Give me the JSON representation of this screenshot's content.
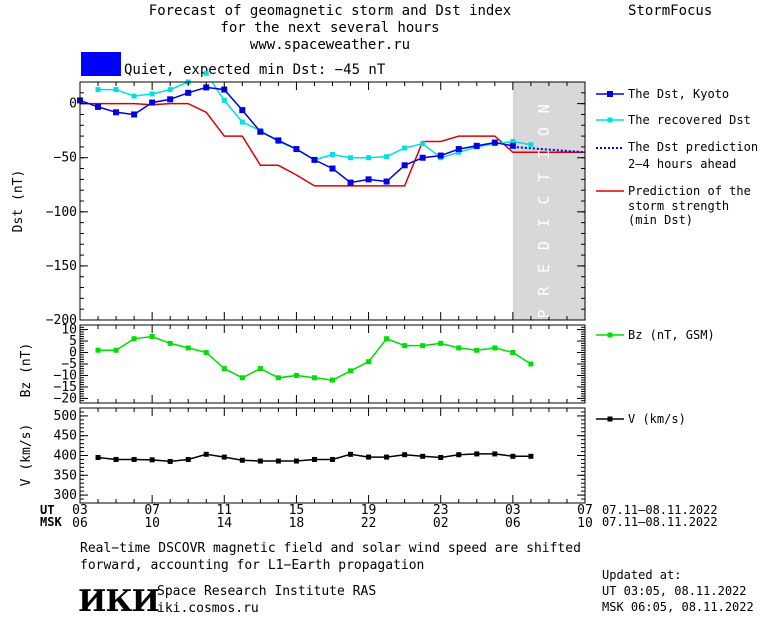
{
  "header": {
    "title_line1": "Forecast of geomagnetic storm and Dst index",
    "title_line2": "for the next several hours",
    "site": "www.spaceweather.ru",
    "brand": "StormFocus"
  },
  "status": {
    "text": "Quiet, expected min Dst: −45 nT",
    "color": "#0000ff"
  },
  "prediction_label": "PREDICTION",
  "legend": {
    "dst_kyoto": "The Dst, Kyoto",
    "dst_recovered": "The recovered Dst",
    "dst_prediction_l1": "The Dst prediction",
    "dst_prediction_l2": "2–4 hours ahead",
    "storm_l1": "Prediction of the",
    "storm_l2": "storm strength",
    "storm_l3": "(min Dst)",
    "bz": "Bz (nT, GSM)",
    "v": "V (km/s)"
  },
  "time_axis": {
    "ut_label": "UT",
    "msk_label": "MSK",
    "ut_ticks": [
      "03",
      "07",
      "11",
      "15",
      "19",
      "23",
      "03",
      "07"
    ],
    "msk_ticks": [
      "06",
      "10",
      "14",
      "18",
      "22",
      "02",
      "06",
      "10"
    ],
    "ut_range": "07.11–08.11.2022",
    "msk_range": "07.11–08.11.2022"
  },
  "footer": {
    "note_l1": "Real−time DSCOVR magnetic field and solar wind speed are shifted",
    "note_l2": "forward, accounting for L1−Earth propagation",
    "logo": "ИКИ",
    "institute": "Space Research Institute RAS",
    "url": "iki.cosmos.ru",
    "updated_label": "Updated at:",
    "updated_ut": "UT   03:05, 08.11.2022",
    "updated_msk": "MSK 06:05, 08.11.2022"
  },
  "colors": {
    "dst_kyoto": "#0000e0",
    "dst_recovered": "#00e0e0",
    "dst_prediction": "#0000ff",
    "storm": "#dd0000",
    "bz": "#00dd00",
    "v": "#000000",
    "prediction_band": "#d8d8d8"
  },
  "chart_data": [
    {
      "type": "line",
      "ylabel": "Dst (nT)",
      "ylim": [
        -200,
        20
      ],
      "yticks": [
        0,
        -50,
        -100,
        -150,
        -200
      ],
      "xlim_hours": [
        3,
        31
      ],
      "prediction_region_hours": [
        27,
        31
      ],
      "series": [
        {
          "name": "The Dst, Kyoto",
          "x": [
            3,
            4,
            5,
            6,
            7,
            8,
            9,
            10,
            11,
            12,
            13,
            14,
            15,
            16,
            17,
            18,
            19,
            20,
            21,
            22,
            23,
            24,
            25,
            26,
            27
          ],
          "y": [
            3,
            -3,
            -8,
            -10,
            1,
            4,
            10,
            15,
            13,
            -6,
            -26,
            -34,
            -42,
            -52,
            -60,
            -73,
            -70,
            -72,
            -57,
            -50,
            -48,
            -42,
            -39,
            -36,
            -39
          ]
        },
        {
          "name": "The recovered Dst",
          "x": [
            4,
            5,
            6,
            7,
            8,
            9,
            10,
            11,
            12,
            13,
            14,
            15,
            16,
            17,
            18,
            19,
            20,
            21,
            22,
            23,
            24,
            25,
            26,
            27,
            28
          ],
          "y": [
            13,
            13,
            7,
            9,
            13,
            20,
            28,
            3,
            -17,
            -25,
            -35,
            -42,
            -52,
            -47,
            -50,
            -50,
            -49,
            -41,
            -37,
            -50,
            -45,
            -40,
            -37,
            -35,
            -38
          ]
        },
        {
          "name": "The Dst prediction 2–4 hours ahead",
          "x": [
            27,
            31
          ],
          "y": [
            -40,
            -45
          ]
        },
        {
          "name": "Prediction of the storm strength (min Dst)",
          "x": [
            3,
            4,
            5,
            6,
            7,
            8,
            9,
            10,
            11,
            12,
            13,
            14,
            15,
            16,
            17,
            18,
            19,
            20,
            21,
            22,
            23,
            24,
            25,
            26,
            27,
            28,
            29,
            30,
            31
          ],
          "y": [
            0,
            0,
            0,
            0,
            -1,
            0,
            0,
            -8,
            -30,
            -30,
            -57,
            -57,
            -66,
            -76,
            -76,
            -76,
            -76,
            -76,
            -76,
            -35,
            -35,
            -30,
            -30,
            -30,
            -45,
            -45,
            -45,
            -45,
            -45
          ]
        }
      ]
    },
    {
      "type": "line",
      "ylabel": "Bz (nT)",
      "ylim": [
        -22,
        12
      ],
      "yticks": [
        10,
        5,
        0,
        -5,
        -10,
        -15,
        -20
      ],
      "xlim_hours": [
        3,
        31
      ],
      "series": [
        {
          "name": "Bz (nT, GSM)",
          "x": [
            4,
            5,
            6,
            7,
            8,
            9,
            10,
            11,
            12,
            13,
            14,
            15,
            16,
            17,
            18,
            19,
            20,
            21,
            22,
            23,
            24,
            25,
            26,
            27,
            28
          ],
          "y": [
            1,
            1,
            6,
            7,
            4,
            2,
            0,
            -7,
            -11,
            -7,
            -11,
            -10,
            -11,
            -12,
            -8,
            -4,
            6,
            3,
            3,
            4,
            2,
            1,
            2,
            0,
            -5
          ]
        }
      ]
    },
    {
      "type": "line",
      "ylabel": "V (km/s)",
      "ylim": [
        280,
        520
      ],
      "yticks": [
        500,
        450,
        400,
        350,
        300
      ],
      "xlim_hours": [
        3,
        31
      ],
      "series": [
        {
          "name": "V (km/s)",
          "x": [
            4,
            5,
            6,
            7,
            8,
            9,
            10,
            11,
            12,
            13,
            14,
            15,
            16,
            17,
            18,
            19,
            20,
            21,
            22,
            23,
            24,
            25,
            26,
            27,
            28
          ],
          "y": [
            395,
            390,
            390,
            389,
            385,
            390,
            403,
            396,
            388,
            386,
            386,
            386,
            390,
            390,
            403,
            396,
            396,
            402,
            398,
            395,
            402,
            404,
            404,
            398,
            398
          ]
        }
      ]
    }
  ]
}
